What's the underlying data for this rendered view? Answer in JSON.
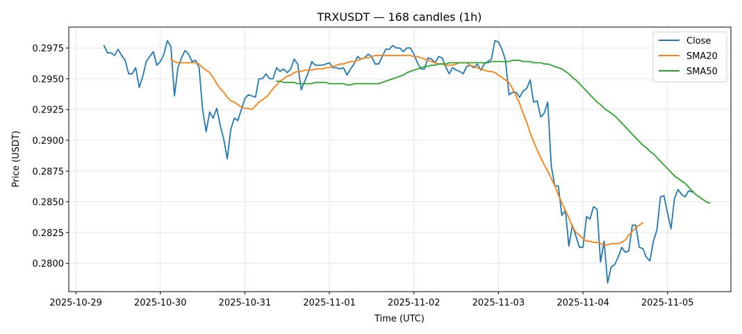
{
  "chart_data": {
    "type": "line",
    "title": "TRXUSDT — 168 candles (1h)",
    "xlabel": "Time (UTC)",
    "ylabel": "Price (USDT)",
    "x_start": "2025-10-29T08:00:00Z",
    "x_step_hours": 1,
    "xlim": [
      "2025-10-28T22:00:00Z",
      "2025-11-05T18:00:00Z"
    ],
    "ylim": [
      0.2777,
      0.2992
    ],
    "x_ticks": [
      "2025-10-29",
      "2025-10-30",
      "2025-10-31",
      "2025-11-01",
      "2025-11-02",
      "2025-11-03",
      "2025-11-04",
      "2025-11-05"
    ],
    "y_ticks": [
      "0.2800",
      "0.2825",
      "0.2850",
      "0.2875",
      "0.2900",
      "0.2925",
      "0.2950",
      "0.2975"
    ],
    "grid": true,
    "legend_position": "top-right",
    "series": [
      {
        "name": "Close",
        "color": "#1f77b4",
        "values": [
          0.2977,
          0.2971,
          0.2971,
          0.2969,
          0.2974,
          0.2969,
          0.2965,
          0.2954,
          0.2954,
          0.2959,
          0.2943,
          0.2952,
          0.2964,
          0.2968,
          0.2972,
          0.2961,
          0.2964,
          0.297,
          0.2981,
          0.2976,
          0.2936,
          0.2959,
          0.2967,
          0.2973,
          0.297,
          0.2964,
          0.2965,
          0.2959,
          0.2925,
          0.2907,
          0.2923,
          0.2918,
          0.2926,
          0.2912,
          0.2901,
          0.2885,
          0.2909,
          0.2918,
          0.2916,
          0.2925,
          0.2934,
          0.2937,
          0.2936,
          0.2935,
          0.295,
          0.295,
          0.2954,
          0.295,
          0.295,
          0.2959,
          0.2956,
          0.2958,
          0.2955,
          0.2958,
          0.2966,
          0.2962,
          0.2941,
          0.2948,
          0.2955,
          0.2964,
          0.2961,
          0.2961,
          0.2961,
          0.2962,
          0.2963,
          0.2959,
          0.2959,
          0.2958,
          0.2959,
          0.2953,
          0.2958,
          0.2962,
          0.2968,
          0.2966,
          0.2967,
          0.297,
          0.2968,
          0.2962,
          0.2962,
          0.2968,
          0.2974,
          0.2974,
          0.2977,
          0.2975,
          0.2975,
          0.2972,
          0.2975,
          0.2975,
          0.297,
          0.2963,
          0.2958,
          0.2958,
          0.2967,
          0.2966,
          0.2963,
          0.2968,
          0.2967,
          0.296,
          0.2954,
          0.2959,
          0.2957,
          0.2956,
          0.2954,
          0.296,
          0.2961,
          0.2959,
          0.2962,
          0.2957,
          0.2962,
          0.2964,
          0.2966,
          0.2981,
          0.298,
          0.2974,
          0.2965,
          0.2937,
          0.2939,
          0.2939,
          0.2935,
          0.294,
          0.2942,
          0.2949,
          0.2931,
          0.2932,
          0.2919,
          0.2922,
          0.2931,
          0.2879,
          0.2863,
          0.2863,
          0.2839,
          0.2843,
          0.2814,
          0.2831,
          0.2822,
          0.2813,
          0.2813,
          0.2838,
          0.2836,
          0.2846,
          0.2844,
          0.2801,
          0.2818,
          0.2784,
          0.2797,
          0.2799,
          0.2805,
          0.2813,
          0.2809,
          0.281,
          0.2831,
          0.2831,
          0.2813,
          0.2812,
          0.2805,
          0.2802,
          0.2818,
          0.2827,
          0.2854,
          0.2855,
          0.2841,
          0.2828,
          0.2853,
          0.286,
          0.2856,
          0.2854,
          0.2859,
          0.2858
        ]
      },
      {
        "name": "SMA20",
        "color": "#ff7f0e",
        "start_index": 19,
        "values": [
          0.2966,
          0.2964,
          0.2963,
          0.2963,
          0.2963,
          0.2963,
          0.2963,
          0.2963,
          0.2962,
          0.2959,
          0.2957,
          0.2955,
          0.2951,
          0.2946,
          0.2942,
          0.2939,
          0.2935,
          0.2932,
          0.2931,
          0.2929,
          0.2927,
          0.2926,
          0.2926,
          0.2925,
          0.2928,
          0.2931,
          0.2933,
          0.2935,
          0.2938,
          0.2942,
          0.2945,
          0.2948,
          0.295,
          0.2952,
          0.2953,
          0.2955,
          0.2956,
          0.2956,
          0.2957,
          0.2957,
          0.2957,
          0.2958,
          0.2958,
          0.2958,
          0.2959,
          0.2959,
          0.296,
          0.2961,
          0.2962,
          0.2962,
          0.2963,
          0.2964,
          0.2964,
          0.2965,
          0.2966,
          0.2967,
          0.2967,
          0.2968,
          0.2969,
          0.2969,
          0.2969,
          0.2969,
          0.2969,
          0.2969,
          0.2969,
          0.2969,
          0.2969,
          0.2969,
          0.2969,
          0.2968,
          0.2968,
          0.2967,
          0.2966,
          0.2965,
          0.2964,
          0.2963,
          0.2962,
          0.2962,
          0.2961,
          0.2961,
          0.2961,
          0.2962,
          0.2963,
          0.2963,
          0.2963,
          0.2961,
          0.296,
          0.2959,
          0.2958,
          0.2957,
          0.2956,
          0.2956,
          0.2955,
          0.2953,
          0.2951,
          0.2949,
          0.2947,
          0.2942,
          0.2936,
          0.293,
          0.2922,
          0.2915,
          0.2906,
          0.2899,
          0.2892,
          0.2886,
          0.288,
          0.2875,
          0.2869,
          0.2863,
          0.2856,
          0.2849,
          0.2843,
          0.2837,
          0.283,
          0.2825,
          0.2823,
          0.282,
          0.2818,
          0.2818,
          0.2817,
          0.2817,
          0.2816,
          0.2815,
          0.2815,
          0.2816,
          0.2816,
          0.2816,
          0.2817,
          0.2819,
          0.2823,
          0.2826,
          0.2829,
          0.2831,
          0.2833
        ]
      },
      {
        "name": "SMA50",
        "color": "#2ca02c",
        "start_index": 49,
        "values": [
          0.2948,
          0.2948,
          0.2947,
          0.2947,
          0.2947,
          0.2947,
          0.2946,
          0.2946,
          0.2946,
          0.2946,
          0.2946,
          0.2947,
          0.2947,
          0.2947,
          0.2947,
          0.2946,
          0.2946,
          0.2946,
          0.2946,
          0.2946,
          0.2945,
          0.2945,
          0.2946,
          0.2946,
          0.2946,
          0.2946,
          0.2946,
          0.2946,
          0.2946,
          0.2946,
          0.2947,
          0.2948,
          0.2949,
          0.295,
          0.2951,
          0.2952,
          0.2953,
          0.2955,
          0.2956,
          0.2957,
          0.2958,
          0.2959,
          0.296,
          0.296,
          0.2961,
          0.2961,
          0.2962,
          0.2962,
          0.2962,
          0.2963,
          0.2963,
          0.2963,
          0.2963,
          0.2963,
          0.2963,
          0.2963,
          0.2963,
          0.2963,
          0.2963,
          0.2963,
          0.2963,
          0.2964,
          0.2964,
          0.2964,
          0.2964,
          0.2964,
          0.2964,
          0.2965,
          0.2965,
          0.2965,
          0.2964,
          0.2964,
          0.2964,
          0.2963,
          0.2963,
          0.2963,
          0.2962,
          0.2962,
          0.2961,
          0.296,
          0.2959,
          0.2958,
          0.2956,
          0.2954,
          0.2951,
          0.2949,
          0.2946,
          0.2943,
          0.294,
          0.2937,
          0.2934,
          0.2931,
          0.2929,
          0.2926,
          0.2924,
          0.2922,
          0.292,
          0.2917,
          0.2914,
          0.2911,
          0.2908,
          0.2905,
          0.2902,
          0.2899,
          0.2896,
          0.2894,
          0.2891,
          0.2889,
          0.2886,
          0.2883,
          0.288,
          0.2877,
          0.2874,
          0.2871,
          0.2869,
          0.2867,
          0.2865,
          0.2862,
          0.2859,
          0.2856,
          0.2854,
          0.2852,
          0.285,
          0.2849
        ]
      }
    ]
  }
}
